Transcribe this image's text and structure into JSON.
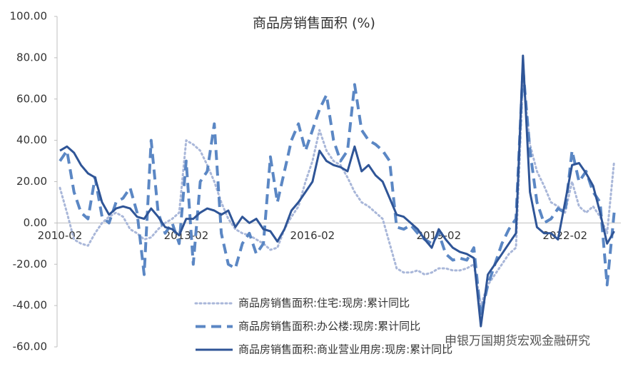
{
  "chart_data": {
    "type": "line",
    "title": "商品房销售面积  (%)",
    "annotation": "申银万国期货宏观金融研究",
    "categories": [
      "2010-02",
      null,
      null,
      null,
      null,
      null,
      null,
      null,
      null,
      null,
      null,
      null,
      null,
      null,
      null,
      null,
      null,
      null,
      "2013-02",
      null,
      null,
      null,
      null,
      null,
      null,
      null,
      null,
      null,
      null,
      null,
      null,
      null,
      null,
      null,
      null,
      null,
      "2016-02",
      null,
      null,
      null,
      null,
      null,
      null,
      null,
      null,
      null,
      null,
      null,
      null,
      null,
      null,
      null,
      null,
      null,
      "2019-02",
      null,
      null,
      null,
      null,
      null,
      null,
      null,
      null,
      null,
      null,
      null,
      null,
      null,
      null,
      null,
      null,
      null,
      "2022-02",
      null,
      null,
      null,
      null,
      null,
      null,
      null
    ],
    "ylim": [
      -60,
      100
    ],
    "yticks": [
      {
        "value": -60,
        "label": "-60.00"
      },
      {
        "value": -40,
        "label": "-40.00"
      },
      {
        "value": -20,
        "label": "-20.00"
      },
      {
        "value": 0,
        "label": "0.00"
      },
      {
        "value": 20,
        "label": "20.00"
      },
      {
        "value": 40,
        "label": "40.00"
      },
      {
        "value": 60,
        "label": "60.00"
      },
      {
        "value": 80,
        "label": "80.00"
      },
      {
        "value": 100,
        "label": "100.00"
      }
    ],
    "grid": false,
    "legend": "bottom",
    "series": [
      {
        "name": "商品房销售面积:住宅:现房:累计同比",
        "color": "#a9b7d9",
        "style": "dotted",
        "values": [
          17,
          5,
          -8,
          -10,
          -11,
          -5,
          0,
          3,
          5,
          3,
          -3,
          -5,
          -8,
          -7,
          -3,
          0,
          2,
          5,
          40,
          38,
          35,
          28,
          20,
          10,
          2,
          -3,
          -5,
          -6,
          -8,
          -10,
          -13,
          -12,
          -3,
          3,
          8,
          20,
          30,
          45,
          35,
          30,
          28,
          22,
          15,
          10,
          8,
          5,
          2,
          -10,
          -22,
          -24,
          -24,
          -23,
          -25,
          -24,
          -22,
          -22,
          -23,
          -23,
          -22,
          -20,
          -40,
          -30,
          -25,
          -20,
          -15,
          -12,
          70,
          38,
          25,
          18,
          10,
          8,
          5,
          20,
          8,
          5,
          8,
          3,
          -5,
          30
        ]
      },
      {
        "name": "商品房销售面积:办公楼:现房:累计同比",
        "color": "#5b87c4",
        "style": "dashed",
        "values": [
          30,
          35,
          15,
          5,
          2,
          22,
          3,
          0,
          10,
          12,
          17,
          5,
          -25,
          40,
          5,
          -5,
          0,
          -10,
          30,
          -20,
          20,
          25,
          48,
          -5,
          -20,
          -22,
          -10,
          -5,
          -15,
          -10,
          32,
          10,
          25,
          40,
          48,
          35,
          45,
          55,
          62,
          40,
          30,
          35,
          67,
          45,
          40,
          38,
          35,
          30,
          -2,
          -3,
          -1,
          -5,
          -8,
          -10,
          -5,
          -15,
          -18,
          -17,
          -18,
          -12,
          -45,
          -30,
          -20,
          -10,
          -3,
          2,
          75,
          35,
          10,
          0,
          2,
          7,
          5,
          35,
          20,
          25,
          15,
          10,
          -30,
          5
        ]
      },
      {
        "name": "商品房销售面积:商业营业用房:现房:累计同比",
        "color": "#2f5597",
        "style": "solid",
        "values": [
          35,
          37,
          34,
          28,
          24,
          22,
          10,
          4,
          7,
          8,
          7,
          3,
          2,
          7,
          3,
          -2,
          -3,
          -6,
          2,
          2,
          5,
          7,
          6,
          4,
          6,
          -2,
          3,
          0,
          2,
          -3,
          -4,
          -9,
          -3,
          6,
          10,
          15,
          20,
          35,
          30,
          28,
          27,
          25,
          37,
          25,
          28,
          23,
          20,
          12,
          4,
          3,
          0,
          -3,
          -8,
          -12,
          -3,
          -8,
          -12,
          -14,
          -15,
          -17,
          -50,
          -25,
          -20,
          -15,
          -10,
          -5,
          81,
          15,
          -2,
          -5,
          -5,
          -8,
          10,
          28,
          29,
          24,
          18,
          5,
          -10,
          -4
        ]
      }
    ]
  }
}
